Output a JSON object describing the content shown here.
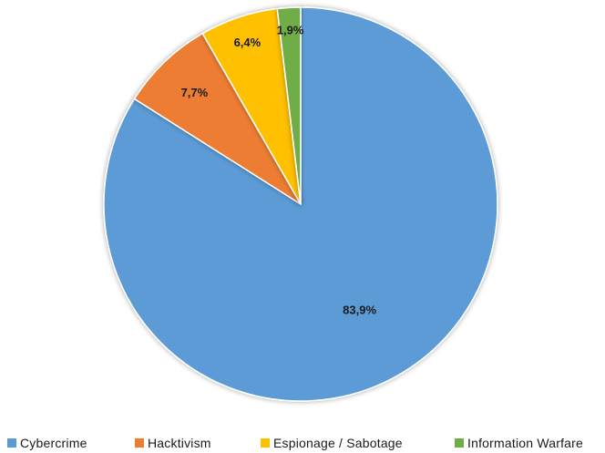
{
  "chart_data": {
    "type": "pie",
    "categories": [
      "Cybercrime",
      "Hacktivism",
      "Espionage / Sabotage",
      "Information Warfare"
    ],
    "values": [
      83.9,
      7.7,
      6.4,
      1.9
    ],
    "labels": [
      "83,9%",
      "7,7%",
      "6,4%",
      "1,9%"
    ],
    "colors": [
      "#5b9bd5",
      "#ed7d31",
      "#ffc000",
      "#70ad47"
    ],
    "start_angle": "12 o'clock",
    "direction": "counter-clockwise",
    "legend_position": "bottom",
    "title": ""
  }
}
